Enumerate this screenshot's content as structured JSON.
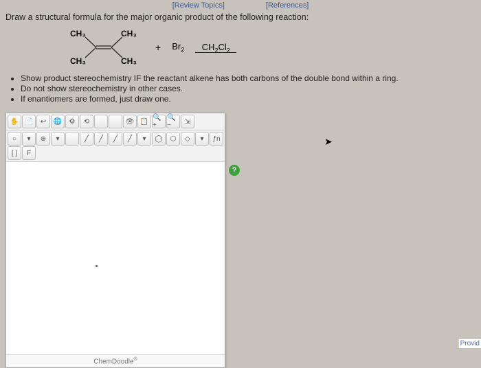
{
  "links": {
    "review": "[Review Topics]",
    "references": "[References]"
  },
  "prompt": "Draw a structural formula for the major organic product of the following reaction:",
  "reaction": {
    "labels": {
      "tl": "CH₃",
      "tr": "CH₃",
      "bl": "CH₃",
      "br": "CH₃"
    },
    "plus": "+",
    "reagent_html": "Br<sub>2</sub>",
    "solvent_html": "CH<sub>2</sub>Cl<sub>2</sub>"
  },
  "bullets": [
    "Show product stereochemistry IF the reactant alkene has both carbons of the double bond within a ring.",
    "Do not show stereochemistry in other cases.",
    "If enantiomers are formed, just draw one."
  ],
  "toolbar1": [
    "✋",
    "📄",
    "↩",
    "🌐",
    "⚙",
    "⟲",
    "",
    "",
    "👁",
    "📋",
    "🔍+",
    "🔍−",
    "⇲"
  ],
  "toolbar2": [
    "○",
    "▾",
    "⊕",
    "▾",
    "",
    "╱",
    "╱",
    "╱",
    "╱",
    "▾",
    "◯",
    "⬡",
    "◇",
    "▾",
    "ƒn",
    "[ ]",
    "F"
  ],
  "help": "?",
  "footer_html": "ChemDoodle<sup>®</sup>",
  "edge": "Provid"
}
